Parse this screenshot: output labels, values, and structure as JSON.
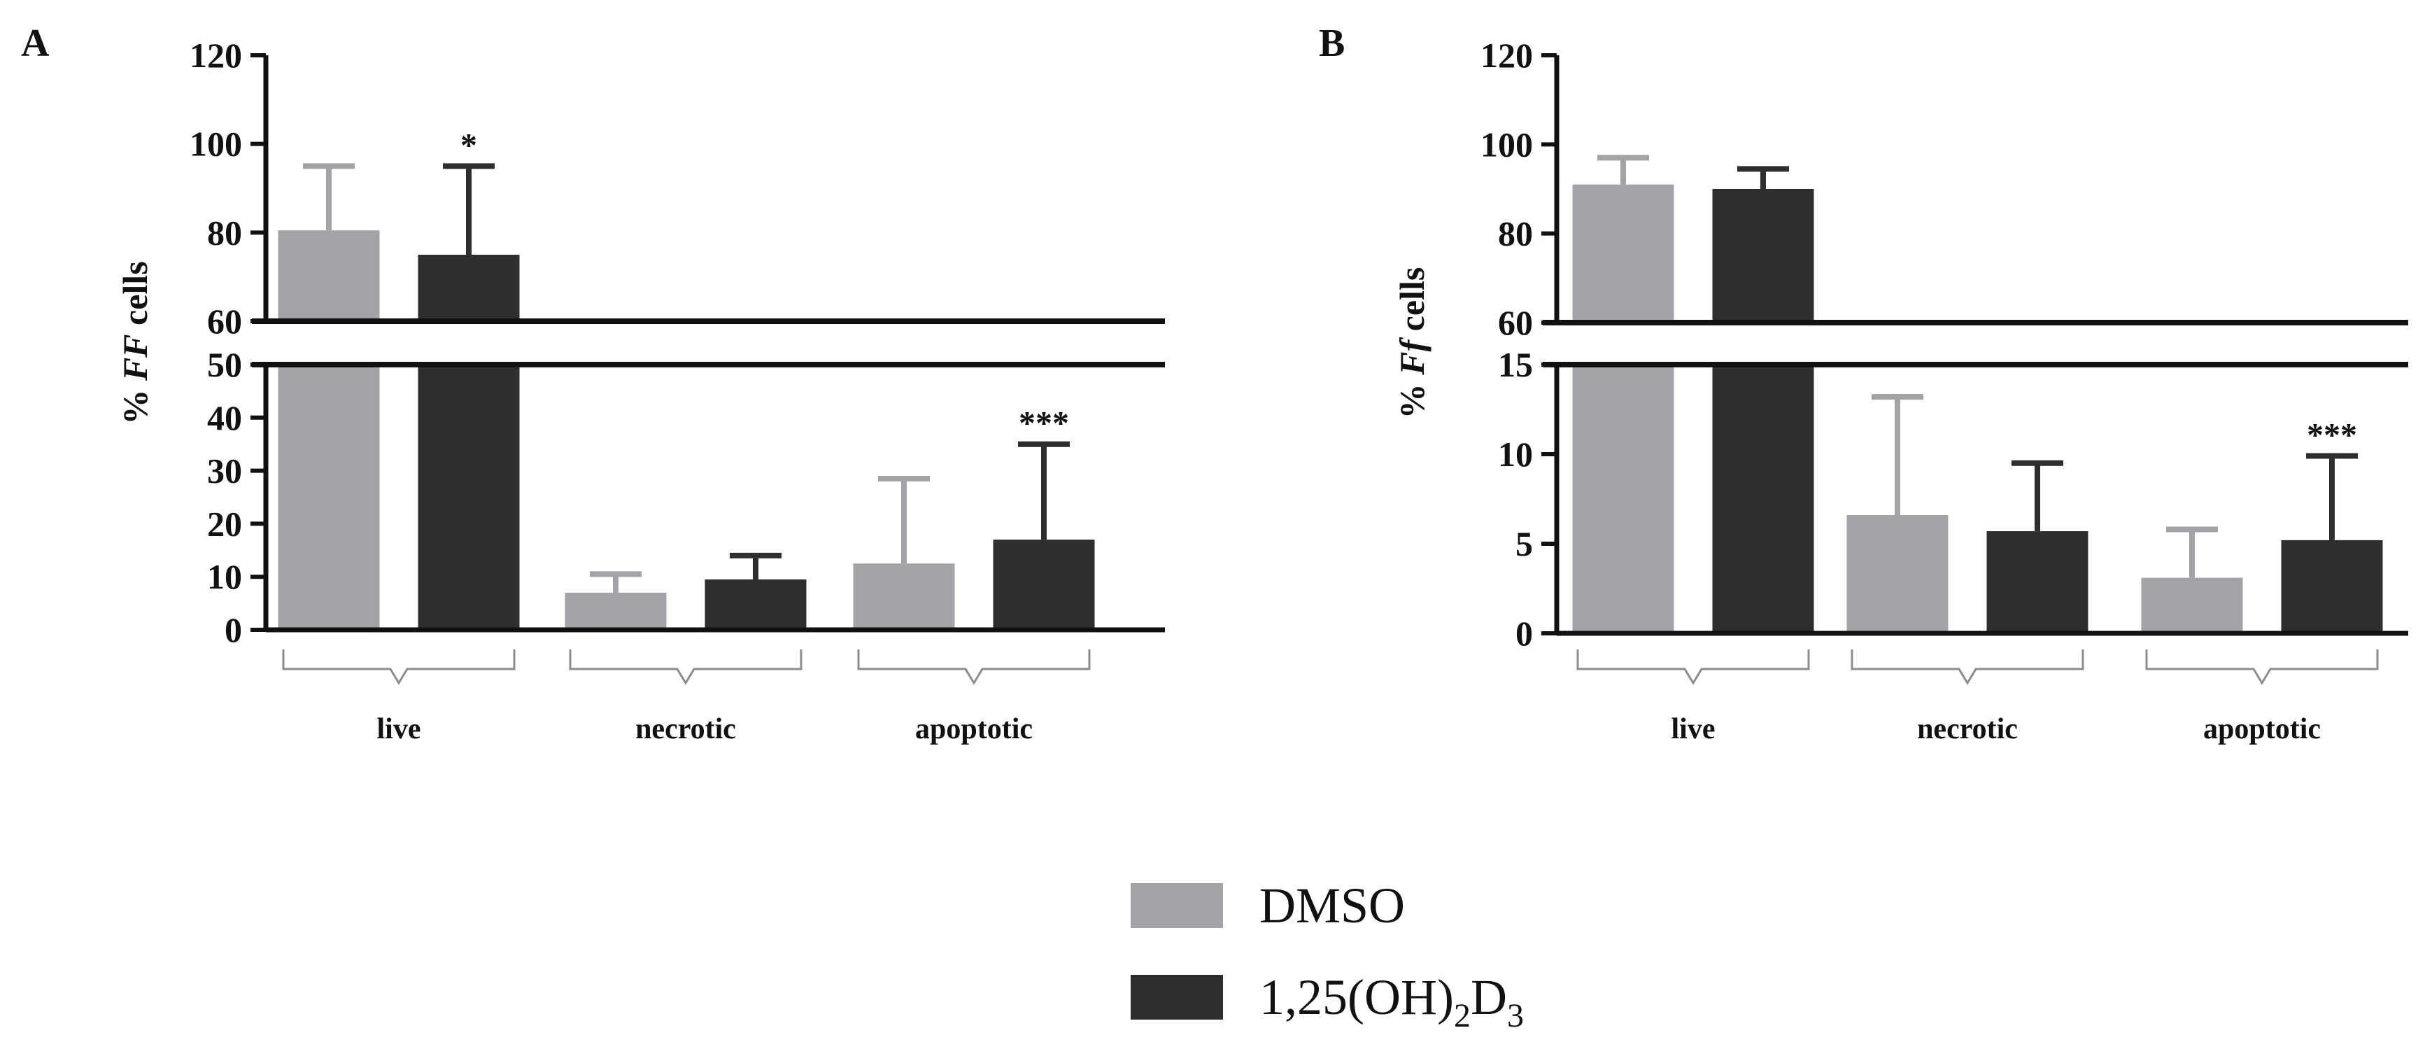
{
  "colors": {
    "dmso": "#a3a2a7",
    "vd": "#2e2e2e",
    "axis": "#111111",
    "bracket": "#8c8c8c"
  },
  "legend": {
    "items": [
      {
        "label": "DMSO"
      },
      {
        "label_main": "1,25(OH)",
        "label_sub1": "2",
        "label_mid": "D",
        "label_sub2": "3"
      }
    ]
  },
  "chart_data": [
    {
      "panel": "A",
      "type": "bar",
      "ylabel_prefix": "% ",
      "ylabel_italic": "FF",
      "ylabel_suffix": " cells",
      "categories": [
        "live",
        "necrotic",
        "apoptotic"
      ],
      "axis_break": {
        "lower": [
          0,
          50
        ],
        "upper": [
          60,
          120
        ]
      },
      "yticks_lower": [
        "0",
        "10",
        "20",
        "30",
        "40",
        "50"
      ],
      "yticks_upper": [
        "60",
        "80",
        "100",
        "120"
      ],
      "series": [
        {
          "name": "DMSO",
          "values": [
            80.5,
            7,
            12.5
          ],
          "errors": [
            14.5,
            3.5,
            16
          ]
        },
        {
          "name": "1,25(OH)2D3",
          "values": [
            75,
            9.5,
            17
          ],
          "errors": [
            20,
            4.5,
            18
          ]
        }
      ],
      "annotations": [
        {
          "category": "live",
          "series": "1,25(OH)2D3",
          "text": "*"
        },
        {
          "category": "apoptotic",
          "series": "1,25(OH)2D3",
          "text": "***"
        }
      ]
    },
    {
      "panel": "B",
      "type": "bar",
      "ylabel_prefix": "% ",
      "ylabel_italic": "Ff",
      "ylabel_suffix": " cells",
      "categories": [
        "live",
        "necrotic",
        "apoptotic"
      ],
      "axis_break": {
        "lower": [
          0,
          15
        ],
        "upper": [
          60,
          120
        ]
      },
      "yticks_lower": [
        "0",
        "5",
        "10",
        "15"
      ],
      "yticks_upper": [
        "60",
        "80",
        "100",
        "120"
      ],
      "series": [
        {
          "name": "DMSO",
          "values": [
            91,
            6.6,
            3.1
          ],
          "errors": [
            6,
            6.6,
            2.7
          ]
        },
        {
          "name": "1,25(OH)2D3",
          "values": [
            90,
            5.7,
            5.2
          ],
          "errors": [
            4.5,
            3.8,
            4.7
          ]
        }
      ],
      "annotations": [
        {
          "category": "apoptotic",
          "series": "1,25(OH)2D3",
          "text": "***"
        }
      ]
    }
  ]
}
